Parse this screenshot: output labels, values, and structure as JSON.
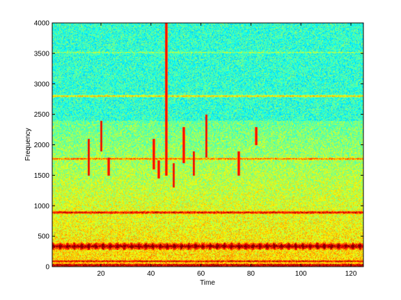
{
  "chart_data": {
    "type": "heatmap",
    "title": "",
    "xlabel": "Time",
    "ylabel": "Frequency",
    "xlim": [
      0.5,
      125
    ],
    "ylim": [
      0,
      4000
    ],
    "x_ticks": [
      20,
      40,
      60,
      80,
      100,
      120
    ],
    "y_ticks": [
      0,
      500,
      1000,
      1500,
      2000,
      2500,
      3000,
      3500,
      4000
    ],
    "grid": false,
    "colormap": "jet",
    "colors": {
      "background": "#3ad7a0",
      "low": "#1e90ff",
      "mid": "#ffff33",
      "high": "#ff3300",
      "peak": "#cc0000"
    },
    "horizontal_bands": [
      {
        "frequency": 30,
        "width": 30,
        "intensity": 1.0
      },
      {
        "frequency": 95,
        "width": 20,
        "intensity": 0.85
      },
      {
        "frequency": 340,
        "width": 60,
        "intensity": 0.95
      },
      {
        "frequency": 895,
        "width": 30,
        "intensity": 1.0
      },
      {
        "frequency": 1775,
        "width": 25,
        "intensity": 0.8
      },
      {
        "frequency": 2805,
        "width": 25,
        "intensity": 0.8
      },
      {
        "frequency": 3520,
        "width": 15,
        "intensity": 0.4
      }
    ],
    "energy_region": {
      "from": 0,
      "to": 2400,
      "intensity": 0.35
    },
    "vertical_streaks": [
      {
        "time": 15,
        "from": 1500,
        "to": 2100
      },
      {
        "time": 20,
        "from": 1900,
        "to": 2400
      },
      {
        "time": 23,
        "from": 1500,
        "to": 1800
      },
      {
        "time": 41,
        "from": 1600,
        "to": 2100
      },
      {
        "time": 43,
        "from": 1450,
        "to": 1750
      },
      {
        "time": 46,
        "from": 1500,
        "to": 4000
      },
      {
        "time": 49,
        "from": 1300,
        "to": 1700
      },
      {
        "time": 53,
        "from": 1700,
        "to": 2300
      },
      {
        "time": 57,
        "from": 1500,
        "to": 1900
      },
      {
        "time": 62,
        "from": 1800,
        "to": 2500
      },
      {
        "time": 75,
        "from": 1500,
        "to": 1900
      },
      {
        "time": 82,
        "from": 2000,
        "to": 2300
      }
    ]
  }
}
